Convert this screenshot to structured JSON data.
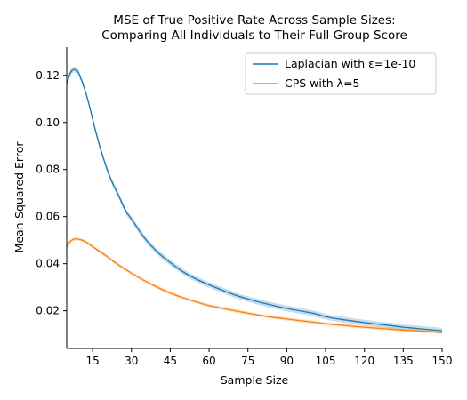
{
  "chart_data": {
    "type": "line",
    "title": "MSE of True Positive Rate Across Sample Sizes:\nComparing All Individuals to Their Full Group Score",
    "xlabel": "Sample Size",
    "ylabel": "Mean-Squared Error",
    "xlim": [
      5,
      150
    ],
    "ylim": [
      0.004,
      0.132
    ],
    "x_ticks": [
      15,
      30,
      45,
      60,
      75,
      90,
      105,
      120,
      135,
      150
    ],
    "y_ticks": [
      0.02,
      0.04,
      0.06,
      0.08,
      0.1,
      0.12
    ],
    "y_tick_labels": [
      "0.02",
      "0.04",
      "0.06",
      "0.08",
      "0.10",
      "0.12"
    ],
    "grid": false,
    "legend_position": "top-right",
    "series": [
      {
        "name": "Laplacian with ε=1e-10",
        "color": "#1f77b4",
        "x": [
          5,
          6,
          7,
          8,
          9,
          10,
          12,
          14,
          16,
          18,
          20,
          22,
          25,
          28,
          30,
          35,
          40,
          45,
          50,
          55,
          60,
          70,
          75,
          80,
          90,
          100,
          105,
          110,
          120,
          130,
          135,
          140,
          150
        ],
        "y": [
          0.116,
          0.12,
          0.122,
          0.1225,
          0.122,
          0.12,
          0.114,
          0.106,
          0.097,
          0.089,
          0.082,
          0.076,
          0.069,
          0.062,
          0.059,
          0.051,
          0.045,
          0.0405,
          0.0365,
          0.0335,
          0.031,
          0.0267,
          0.025,
          0.0235,
          0.021,
          0.019,
          0.0175,
          0.0165,
          0.015,
          0.0137,
          0.013,
          0.0125,
          0.0115
        ],
        "ci_half_width": 0.0012
      },
      {
        "name": "CPS with λ=5",
        "color": "#ff7f0e",
        "x": [
          5,
          6,
          7,
          8,
          9,
          10,
          12,
          14,
          16,
          18,
          20,
          25,
          30,
          35,
          40,
          45,
          50,
          55,
          60,
          70,
          75,
          80,
          90,
          100,
          105,
          110,
          120,
          130,
          135,
          140,
          150
        ],
        "y": [
          0.047,
          0.049,
          0.05,
          0.0505,
          0.0505,
          0.0503,
          0.0495,
          0.048,
          0.0465,
          0.045,
          0.0435,
          0.0395,
          0.036,
          0.0328,
          0.03,
          0.0275,
          0.0255,
          0.0238,
          0.0222,
          0.02,
          0.019,
          0.018,
          0.0165,
          0.0152,
          0.0145,
          0.014,
          0.013,
          0.0122,
          0.0118,
          0.0115,
          0.0108
        ],
        "ci_half_width": 0.0007
      }
    ]
  }
}
